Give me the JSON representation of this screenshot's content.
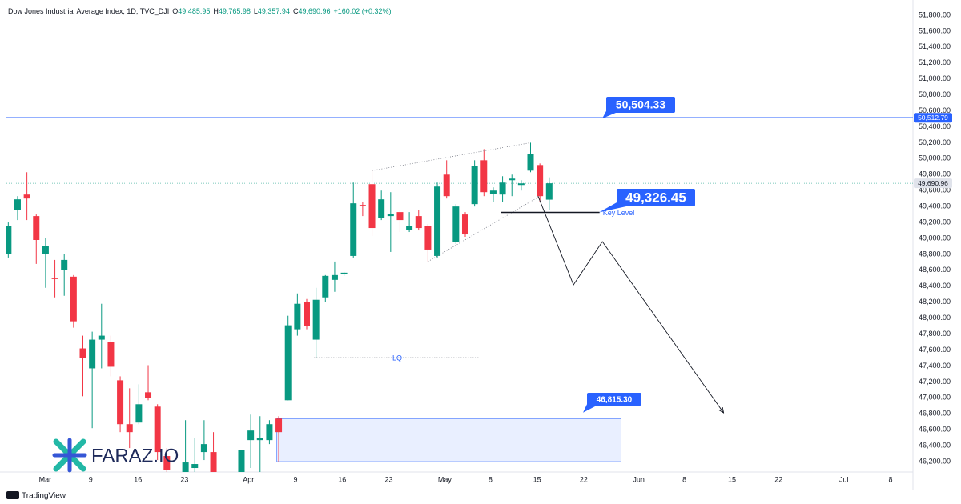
{
  "chart_data": {
    "type": "candlestick",
    "title": "Dow Jones Industrial Average Index, 1D, TVC_DJI",
    "ohlc_legend": [
      {
        "key": "O",
        "value": "49,485.95"
      },
      {
        "key": "H",
        "value": "49,765.98"
      },
      {
        "key": "L",
        "value": "49,357.94"
      },
      {
        "key": "C",
        "value": "49,690.96"
      }
    ],
    "change": "+160.02 (+0.32%)",
    "x": [
      0,
      1,
      2,
      3,
      4,
      5,
      6,
      7,
      8,
      9,
      10,
      11,
      12,
      13,
      14,
      15,
      16,
      17,
      19,
      20,
      21,
      22,
      25,
      26,
      27,
      28,
      29,
      30,
      31,
      32,
      33,
      34,
      35,
      36,
      37,
      38,
      39,
      40,
      41,
      42,
      43,
      44,
      45,
      46,
      47,
      48,
      49,
      50,
      51,
      52,
      53,
      54,
      55,
      56,
      57,
      58
    ],
    "open": [
      48800,
      49360,
      49550,
      49280,
      48800,
      48500,
      48600,
      48520,
      47620,
      47370,
      47730,
      47700,
      47220,
      46670,
      46690,
      47070,
      46890,
      46270,
      46070,
      46120,
      46320,
      46320,
      46070,
      46470,
      46470,
      46470,
      46740,
      46970,
      47860,
      48200,
      47730,
      48260,
      48480,
      48550,
      48780,
      49420,
      49680,
      49260,
      49280,
      49330,
      49110,
      49280,
      49160,
      48780,
      49800,
      48950,
      49300,
      49430,
      49980,
      49560,
      49550,
      49730,
      49670,
      49850,
      49920,
      49485.95
    ],
    "high": [
      49200,
      49530,
      49830,
      49300,
      49000,
      48730,
      48800,
      48540,
      47780,
      47830,
      48180,
      47780,
      47270,
      47120,
      47170,
      47410,
      46920,
      46370,
      46720,
      46500,
      46720,
      46570,
      46350,
      46790,
      46770,
      46720,
      46770,
      48030,
      48310,
      48240,
      48380,
      48540,
      48710,
      48580,
      49700,
      49460,
      49850,
      49600,
      49580,
      49360,
      49330,
      49360,
      49180,
      49700,
      49980,
      49430,
      49330,
      49980,
      50120,
      49640,
      49780,
      49800,
      49730,
      50200,
      49940,
      49765.98
    ],
    "low": [
      48760,
      49230,
      49230,
      48680,
      48380,
      48260,
      48280,
      47880,
      47020,
      46620,
      47370,
      47270,
      46570,
      46370,
      46670,
      46970,
      46220,
      46070,
      46070,
      46070,
      46220,
      46070,
      46070,
      46120,
      46070,
      46420,
      46200,
      46970,
      47780,
      47860,
      47500,
      48200,
      48330,
      48530,
      48760,
      49280,
      49030,
      49230,
      48830,
      49080,
      49080,
      49100,
      48710,
      48760,
      49500,
      48930,
      49020,
      49400,
      49530,
      49460,
      49460,
      49530,
      49600,
      49830,
      49460,
      49357.94
    ],
    "close": [
      49160,
      49490,
      49500,
      48980,
      48900,
      48490,
      48730,
      47960,
      47500,
      47730,
      47780,
      47390,
      46670,
      46570,
      46920,
      47000,
      46320,
      46090,
      46190,
      46170,
      46420,
      46070,
      46350,
      46590,
      46500,
      46670,
      46570,
      47910,
      48180,
      47900,
      48230,
      48530,
      48540,
      48570,
      49440,
      49410,
      49130,
      49490,
      49310,
      49230,
      49160,
      49130,
      48860,
      49650,
      49530,
      49400,
      49050,
      49910,
      49580,
      49600,
      49700,
      49750,
      49690,
      50060,
      49530,
      49690.96
    ],
    "up_color": "#089981",
    "down_color": "#f23645",
    "xlim": [
      -0.2,
      97
    ],
    "ylim": [
      46070,
      51910
    ],
    "xticks": [
      {
        "value": 3.95,
        "label": "Mar"
      },
      {
        "value": 8.84,
        "label": "9"
      },
      {
        "value": 13.9,
        "label": "16"
      },
      {
        "value": 18.9,
        "label": "23"
      },
      {
        "value": 25.75,
        "label": "Apr"
      },
      {
        "value": 30.8,
        "label": "9"
      },
      {
        "value": 35.8,
        "label": "16"
      },
      {
        "value": 40.8,
        "label": "23"
      },
      {
        "value": 46.8,
        "label": "May"
      },
      {
        "value": 51.7,
        "label": "8"
      },
      {
        "value": 56.7,
        "label": "15"
      },
      {
        "value": 61.7,
        "label": "22"
      },
      {
        "value": 67.6,
        "label": "Jun"
      },
      {
        "value": 72.5,
        "label": "8"
      },
      {
        "value": 77.6,
        "label": "15"
      },
      {
        "value": 82.6,
        "label": "22"
      },
      {
        "value": 89.6,
        "label": "Jul"
      },
      {
        "value": 94.6,
        "label": "8"
      }
    ],
    "yticks": [
      {
        "value": 46200,
        "label": "46,200.00"
      },
      {
        "value": 46400,
        "label": "46,400.00"
      },
      {
        "value": 46600,
        "label": "46,600.00"
      },
      {
        "value": 46800,
        "label": "46,800.00"
      },
      {
        "value": 47000,
        "label": "47,000.00"
      },
      {
        "value": 47200,
        "label": "47,200.00"
      },
      {
        "value": 47400,
        "label": "47,400.00"
      },
      {
        "value": 47600,
        "label": "47,600.00"
      },
      {
        "value": 47800,
        "label": "47,800.00"
      },
      {
        "value": 48000,
        "label": "48,000.00"
      },
      {
        "value": 48200,
        "label": "48,200.00"
      },
      {
        "value": 48400,
        "label": "48,400.00"
      },
      {
        "value": 48600,
        "label": "48,600.00"
      },
      {
        "value": 48800,
        "label": "48,800.00"
      },
      {
        "value": 49000,
        "label": "49,000.00"
      },
      {
        "value": 49200,
        "label": "49,200.00"
      },
      {
        "value": 49400,
        "label": "49,400.00"
      },
      {
        "value": 49600,
        "label": "49,600.00"
      },
      {
        "value": 49800,
        "label": "49,800.00"
      },
      {
        "value": 50000,
        "label": "50,000.00"
      },
      {
        "value": 50200,
        "label": "50,200.00"
      },
      {
        "value": 50400,
        "label": "50,400.00"
      },
      {
        "value": 50600,
        "label": "50,600.00"
      },
      {
        "value": 50800,
        "label": "50,800.00"
      },
      {
        "value": 51000,
        "label": "51,000.00"
      },
      {
        "value": 51200,
        "label": "51,200.00"
      },
      {
        "value": 51400,
        "label": "51,400.00"
      },
      {
        "value": 51600,
        "label": "51,600.00"
      },
      {
        "value": 51800,
        "label": "51,800.00"
      }
    ],
    "last_price": {
      "value": 49690.96,
      "label": "49,690.96"
    },
    "resistance": {
      "value": 50512.79,
      "label": "50,512.79",
      "color": "#2962ff"
    },
    "resistance_callout": {
      "value": 50504.33,
      "label": "50,504.33"
    },
    "wedge_upper": {
      "x": [
        39,
        56
      ],
      "y": [
        49850,
        50200
      ]
    },
    "wedge_lower": {
      "x": [
        45,
        57
      ],
      "y": [
        48710,
        49530
      ]
    },
    "key_level": {
      "name": "Key Level",
      "value": 49326.45,
      "label": "49,326.45",
      "x": [
        52.8,
        63.4
      ]
    },
    "liquidity": {
      "name": "LQ",
      "value": 47505,
      "x": [
        32.8,
        50.6
      ]
    },
    "projection": {
      "x": [
        56.8,
        60.6,
        63.7,
        76.7
      ],
      "y": [
        49532,
        48418,
        48960,
        46812
      ]
    },
    "demand_zone": {
      "x": [
        28.8,
        65.7
      ],
      "y": [
        46200,
        46740
      ]
    },
    "zone_callout": {
      "value": 46815.3,
      "label": "46,815.30"
    },
    "logo": "FARAZ.IO",
    "footer": "TradingView"
  }
}
